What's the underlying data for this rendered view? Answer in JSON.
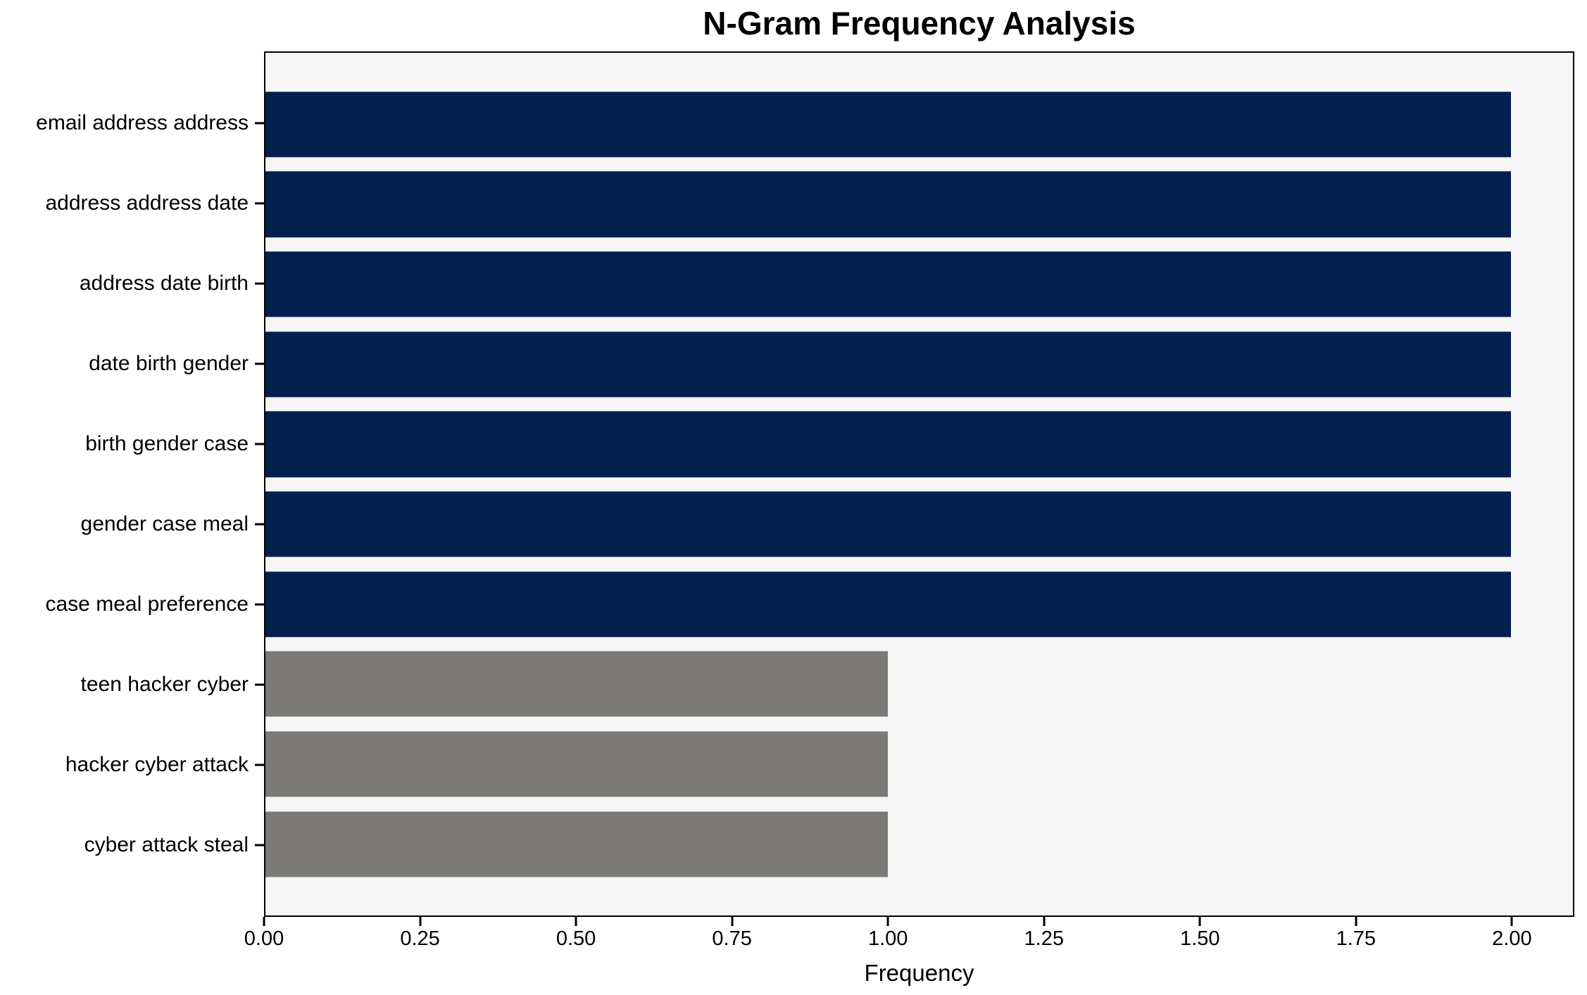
{
  "chart_data": {
    "type": "bar",
    "orientation": "horizontal",
    "title": "N-Gram Frequency Analysis",
    "xlabel": "Frequency",
    "ylabel": "",
    "categories": [
      "email address address",
      "address address date",
      "address date birth",
      "date birth gender",
      "birth gender case",
      "gender case meal",
      "case meal preference",
      "teen hacker cyber",
      "hacker cyber attack",
      "cyber attack steal"
    ],
    "values": [
      2.0,
      2.0,
      2.0,
      2.0,
      2.0,
      2.0,
      2.0,
      1.0,
      1.0,
      1.0
    ],
    "bar_colors": [
      "#03204d",
      "#03204d",
      "#03204d",
      "#03204d",
      "#03204d",
      "#03204d",
      "#03204d",
      "#7b7a77",
      "#7b7a77",
      "#7b7a77"
    ],
    "xlim": [
      0,
      2.1
    ],
    "xticks": [
      0,
      0.25,
      0.5,
      0.75,
      1.0,
      1.25,
      1.5,
      1.75,
      2.0
    ],
    "xtick_labels": [
      "0.00",
      "0.25",
      "0.50",
      "0.75",
      "1.00",
      "1.25",
      "1.50",
      "1.75",
      "2.00"
    ],
    "grid": false,
    "legend_position": "none",
    "plot_background": "#f6f6f7",
    "figure_background": "#ffffff",
    "spine_color": "#000000"
  }
}
